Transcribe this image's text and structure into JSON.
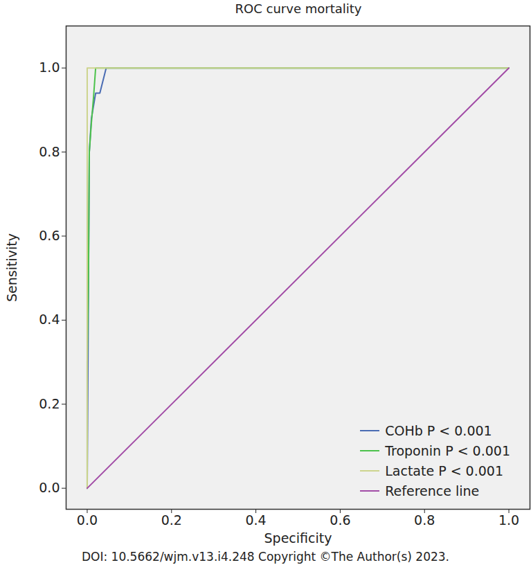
{
  "chart_data": {
    "type": "line",
    "title": "ROC curve mortality",
    "x_label": "Specificity",
    "y_label": "Sensitivity",
    "caption": "DOI: 10.5662/wjm.v13.i4.248 Copyright ©The Author(s) 2023.",
    "xlim": [
      -0.05,
      1.05
    ],
    "ylim": [
      -0.05,
      1.1
    ],
    "xticks": [
      {
        "value": 0,
        "label": "0.0"
      },
      0.2,
      0.4,
      0.6,
      0.8,
      {
        "value": 1,
        "label": "1.0"
      }
    ],
    "yticks": [
      {
        "value": 0,
        "label": "0.0"
      },
      0.2,
      0.4,
      0.6,
      0.8,
      {
        "value": 1,
        "label": "1.0"
      }
    ],
    "legend": "bottom-right",
    "grid": false,
    "series": [
      {
        "name": "COHb P < 0.001",
        "color": "#4a6cb3",
        "x": [
          0,
          0.005,
          0.01,
          0.02,
          0.03,
          0.045,
          1
        ],
        "values": [
          0,
          0.8,
          0.88,
          0.94,
          0.94,
          1,
          1
        ]
      },
      {
        "name": "Troponin P < 0.001",
        "color": "#4cc24c",
        "x": [
          0,
          0,
          0.003,
          0.005,
          0.01,
          0.015,
          0.02,
          1
        ],
        "values": [
          0,
          0.3,
          0.5,
          0.8,
          0.87,
          0.93,
          1,
          1
        ]
      },
      {
        "name": "Lactate P < 0.001",
        "color": "#cdd48e",
        "x": [
          0,
          0,
          1
        ],
        "values": [
          0,
          1,
          1
        ]
      },
      {
        "name": "Reference line",
        "color": "#a24ca6",
        "x": [
          0,
          1
        ],
        "values": [
          0,
          1
        ]
      }
    ]
  }
}
